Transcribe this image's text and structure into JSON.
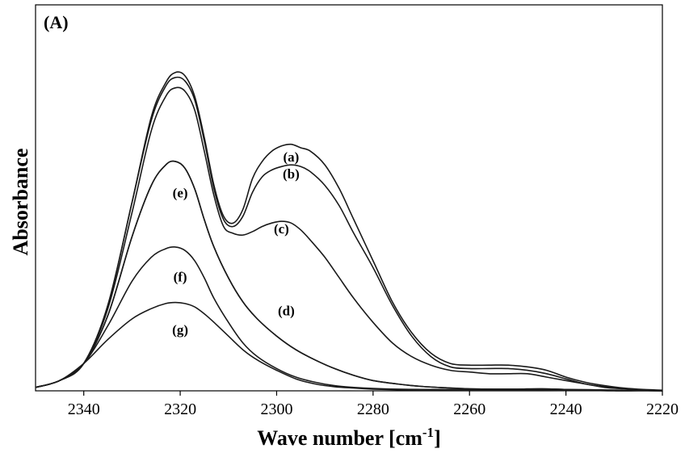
{
  "chart_data": {
    "type": "line",
    "panel_label": "(A)",
    "xlabel": "Wave number [cm",
    "xlabel_sup": "-1",
    "xlabel_suffix": "]",
    "ylabel": "Absorbance",
    "xlim": [
      2350,
      2220
    ],
    "ylim": [
      0,
      1
    ],
    "x_ticks": [
      2340,
      2320,
      2300,
      2280,
      2260,
      2240,
      2220
    ],
    "x_tick_labels": [
      "2340",
      "2320",
      "2300",
      "2280",
      "2260",
      "2240",
      "2220"
    ],
    "grid": false,
    "series": [
      {
        "name": "(a)",
        "label_at": [
          2297,
          0.67
        ],
        "x": [
          2350,
          2345,
          2340,
          2335,
          2330,
          2326,
          2323,
          2321,
          2319,
          2317,
          2315,
          2313,
          2311,
          2309,
          2307,
          2305,
          2303,
          2301,
          2299,
          2297,
          2295,
          2293,
          2290,
          2287,
          2284,
          2280,
          2276,
          2272,
          2268,
          2264,
          2260,
          2256,
          2252,
          2248,
          2244,
          2240,
          2236,
          2232,
          2228,
          2224,
          2220
        ],
        "y": [
          0.01,
          0.03,
          0.08,
          0.25,
          0.55,
          0.8,
          0.9,
          0.93,
          0.92,
          0.86,
          0.74,
          0.6,
          0.51,
          0.49,
          0.53,
          0.62,
          0.67,
          0.7,
          0.715,
          0.72,
          0.71,
          0.7,
          0.66,
          0.59,
          0.5,
          0.38,
          0.26,
          0.17,
          0.11,
          0.08,
          0.075,
          0.075,
          0.075,
          0.07,
          0.06,
          0.04,
          0.025,
          0.015,
          0.008,
          0.004,
          0.002
        ]
      },
      {
        "name": "(b)",
        "label_at": [
          2297,
          0.62
        ],
        "x": [
          2350,
          2345,
          2340,
          2335,
          2330,
          2326,
          2323,
          2321,
          2319,
          2317,
          2315,
          2313,
          2311,
          2309,
          2307,
          2305,
          2303,
          2301,
          2299,
          2297,
          2295,
          2293,
          2290,
          2287,
          2284,
          2280,
          2276,
          2272,
          2268,
          2264,
          2260,
          2256,
          2252,
          2248,
          2244,
          2240,
          2236,
          2232,
          2228,
          2224,
          2220
        ],
        "y": [
          0.01,
          0.03,
          0.08,
          0.25,
          0.55,
          0.79,
          0.89,
          0.915,
          0.905,
          0.85,
          0.73,
          0.59,
          0.5,
          0.48,
          0.51,
          0.58,
          0.625,
          0.645,
          0.655,
          0.66,
          0.655,
          0.64,
          0.6,
          0.54,
          0.46,
          0.36,
          0.25,
          0.16,
          0.1,
          0.07,
          0.065,
          0.065,
          0.065,
          0.06,
          0.05,
          0.035,
          0.02,
          0.012,
          0.007,
          0.003,
          0.001
        ]
      },
      {
        "name": "(c)",
        "label_at": [
          2299,
          0.46
        ],
        "x": [
          2350,
          2345,
          2340,
          2335,
          2330,
          2326,
          2323,
          2321,
          2319,
          2317,
          2315,
          2313,
          2311,
          2309,
          2307,
          2305,
          2303,
          2301,
          2299,
          2297,
          2295,
          2293,
          2290,
          2287,
          2284,
          2280,
          2276,
          2272,
          2268,
          2264,
          2260,
          2256,
          2252,
          2248,
          2244,
          2240,
          2236,
          2232,
          2228,
          2224,
          2220
        ],
        "y": [
          0.01,
          0.03,
          0.08,
          0.24,
          0.52,
          0.76,
          0.86,
          0.885,
          0.875,
          0.82,
          0.7,
          0.57,
          0.48,
          0.46,
          0.455,
          0.465,
          0.48,
          0.49,
          0.495,
          0.49,
          0.47,
          0.44,
          0.39,
          0.33,
          0.27,
          0.2,
          0.14,
          0.1,
          0.075,
          0.06,
          0.055,
          0.05,
          0.05,
          0.05,
          0.04,
          0.03,
          0.02,
          0.01,
          0.006,
          0.003,
          0.001
        ]
      },
      {
        "name": "(d)",
        "label_at": [
          2298,
          0.22
        ],
        "x": [
          2350,
          2345,
          2340,
          2335,
          2330,
          2326,
          2323,
          2321,
          2319,
          2317,
          2315,
          2313,
          2310,
          2307,
          2304,
          2300,
          2296,
          2292,
          2288,
          2284,
          2280,
          2275,
          2270,
          2265,
          2260,
          2255,
          2250,
          2245,
          2240,
          2235,
          2230,
          2225,
          2220
        ],
        "y": [
          0.01,
          0.03,
          0.08,
          0.22,
          0.45,
          0.6,
          0.66,
          0.67,
          0.65,
          0.59,
          0.5,
          0.42,
          0.33,
          0.26,
          0.21,
          0.16,
          0.12,
          0.09,
          0.065,
          0.045,
          0.03,
          0.02,
          0.013,
          0.009,
          0.006,
          0.005,
          0.005,
          0.006,
          0.004,
          0.003,
          0.002,
          0.001,
          0.0
        ]
      },
      {
        "name": "(e)",
        "label_at": [
          2320,
          0.565
        ],
        "x": [
          2350,
          2345,
          2340,
          2335,
          2330,
          2326,
          2323,
          2321,
          2319,
          2317,
          2315,
          2313,
          2310,
          2307,
          2304,
          2300,
          2296,
          2292,
          2288,
          2284,
          2280,
          2275,
          2270,
          2265,
          2260,
          2255,
          2250,
          2245,
          2240,
          2235,
          2230,
          2225,
          2220
        ],
        "y": [
          0.01,
          0.03,
          0.08,
          0.22,
          0.45,
          0.6,
          0.66,
          0.67,
          0.65,
          0.59,
          0.5,
          0.42,
          0.33,
          0.26,
          0.21,
          0.16,
          0.12,
          0.09,
          0.065,
          0.045,
          0.03,
          0.02,
          0.013,
          0.009,
          0.006,
          0.005,
          0.005,
          0.006,
          0.004,
          0.003,
          0.002,
          0.001,
          0.0
        ]
      },
      {
        "name": "(f)",
        "label_at": [
          2320,
          0.32
        ],
        "x": [
          2350,
          2345,
          2340,
          2335,
          2330,
          2326,
          2323,
          2321,
          2319,
          2317,
          2315,
          2313,
          2310,
          2307,
          2304,
          2300,
          2296,
          2292,
          2288,
          2284,
          2280,
          2275,
          2270,
          2265,
          2260,
          2255,
          2250,
          2245,
          2240,
          2235,
          2230,
          2225,
          2220
        ],
        "y": [
          0.01,
          0.03,
          0.08,
          0.19,
          0.32,
          0.39,
          0.415,
          0.42,
          0.41,
          0.38,
          0.33,
          0.27,
          0.2,
          0.14,
          0.1,
          0.065,
          0.04,
          0.025,
          0.015,
          0.01,
          0.007,
          0.005,
          0.004,
          0.004,
          0.003,
          0.003,
          0.003,
          0.003,
          0.002,
          0.002,
          0.001,
          0.001,
          0.0
        ]
      },
      {
        "name": "(g)",
        "label_at": [
          2320,
          0.165
        ],
        "x": [
          2350,
          2345,
          2340,
          2335,
          2330,
          2326,
          2323,
          2321,
          2319,
          2317,
          2315,
          2313,
          2310,
          2307,
          2304,
          2300,
          2296,
          2292,
          2288,
          2284,
          2280,
          2275,
          2270,
          2265,
          2260,
          2255,
          2250,
          2245,
          2240,
          2235,
          2230,
          2225,
          2220
        ],
        "y": [
          0.01,
          0.03,
          0.08,
          0.15,
          0.21,
          0.24,
          0.255,
          0.258,
          0.255,
          0.245,
          0.225,
          0.2,
          0.16,
          0.12,
          0.09,
          0.06,
          0.035,
          0.02,
          0.012,
          0.008,
          0.005,
          0.003,
          0.002,
          0.002,
          0.002,
          0.002,
          0.002,
          0.002,
          0.001,
          0.001,
          0.0,
          0.0,
          0.0
        ]
      }
    ]
  }
}
